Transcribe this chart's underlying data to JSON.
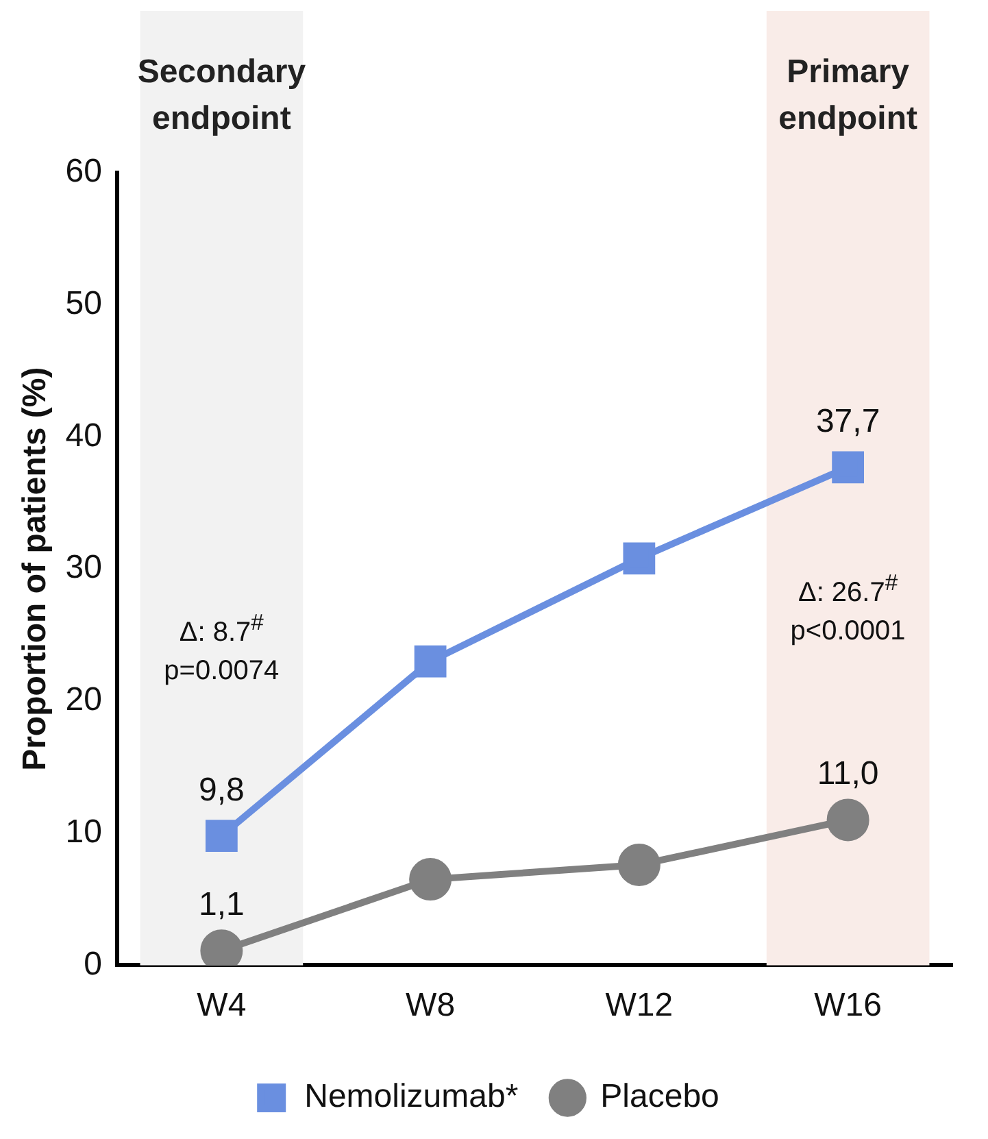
{
  "chart_data": {
    "type": "line",
    "categories": [
      "W4",
      "W8",
      "W12",
      "W16"
    ],
    "ylabel": "Proportion of patients (%)",
    "ylim": [
      0,
      60
    ],
    "yticks": [
      0,
      10,
      20,
      30,
      40,
      50,
      60
    ],
    "grid": false,
    "legend": "bottom",
    "series": [
      {
        "name": "Nemolizumab*",
        "color": "#6a8fe0",
        "marker": "square",
        "values": [
          9.8,
          23.0,
          30.8,
          37.7
        ],
        "value_labels": [
          "9,8",
          null,
          null,
          "37,7"
        ]
      },
      {
        "name": "Placebo",
        "color": "#808080",
        "marker": "circle",
        "values": [
          1.1,
          6.5,
          7.6,
          11.0
        ],
        "value_labels": [
          "1,1",
          null,
          null,
          "11,0"
        ]
      }
    ],
    "bands": [
      {
        "axis": "x",
        "from": "W4",
        "to": "W4",
        "label": "Secondary\nendpoint",
        "color": "#f2f2f2"
      },
      {
        "axis": "x",
        "from": "W16",
        "to": "W16",
        "label": "Primary\nendpoint",
        "color": "#f9ece8"
      }
    ],
    "annotations": [
      "Δ: 8.7$^{#}$\np=0.0074",
      "Δ: 26.7$^{#}$\np<0.0001"
    ]
  }
}
